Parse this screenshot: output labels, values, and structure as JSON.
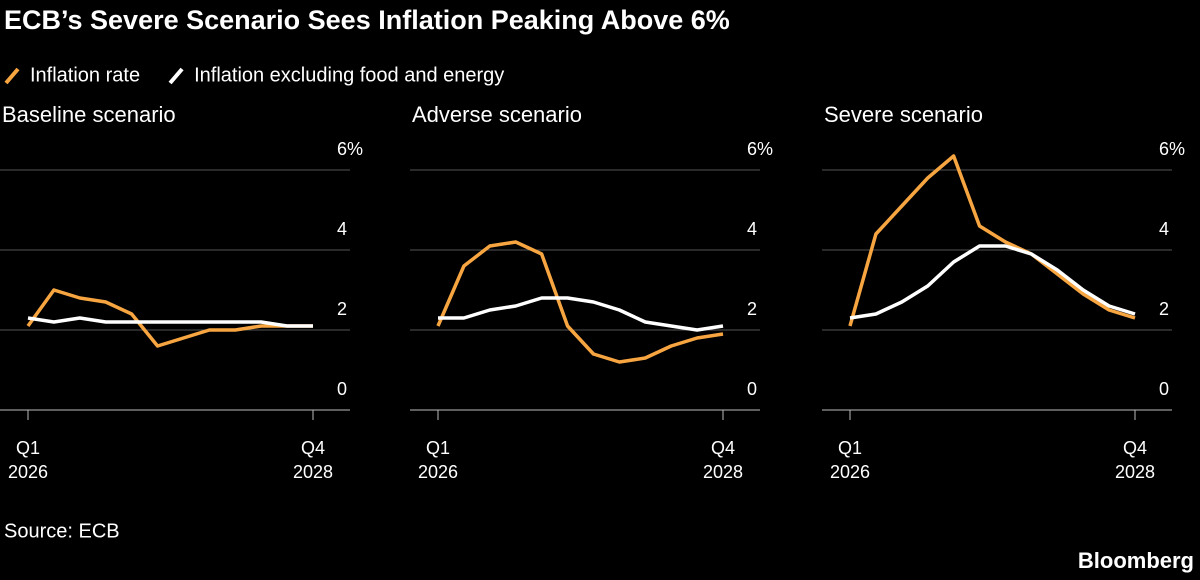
{
  "title": "ECB’s Severe Scenario Sees Inflation Peaking Above 6%",
  "source": "Source: ECB",
  "brand": "Bloomberg",
  "chart_data": [
    {
      "type": "line",
      "title": "Baseline scenario",
      "categories": [
        "Q1\n2026",
        null,
        null,
        null,
        null,
        null,
        null,
        null,
        null,
        null,
        null,
        "Q4\n2028"
      ],
      "ylim": [
        0,
        6.5
      ],
      "yticks": [
        0,
        2,
        4,
        {
          "value": 6,
          "label": "6%"
        }
      ],
      "grid": true,
      "series": [
        {
          "name": "Inflation rate",
          "color": "#f7a541",
          "values": [
            2.1,
            3.0,
            2.8,
            2.7,
            2.4,
            1.6,
            1.8,
            2.0,
            2.0,
            2.1,
            2.1,
            2.1
          ]
        },
        {
          "name": "Inflation excluding food and energy",
          "color": "#ffffff",
          "values": [
            2.3,
            2.2,
            2.3,
            2.2,
            2.2,
            2.2,
            2.2,
            2.2,
            2.2,
            2.2,
            2.1,
            2.1
          ]
        }
      ]
    },
    {
      "type": "line",
      "title": "Adverse scenario",
      "categories": [
        "Q1\n2026",
        null,
        null,
        null,
        null,
        null,
        null,
        null,
        null,
        null,
        null,
        "Q4\n2028"
      ],
      "ylim": [
        0,
        6.5
      ],
      "yticks": [
        0,
        2,
        4,
        {
          "value": 6,
          "label": "6%"
        }
      ],
      "grid": true,
      "series": [
        {
          "name": "Inflation rate",
          "color": "#f7a541",
          "values": [
            2.1,
            3.6,
            4.1,
            4.2,
            3.9,
            2.1,
            1.4,
            1.2,
            1.3,
            1.6,
            1.8,
            1.9
          ]
        },
        {
          "name": "Inflation excluding food and energy",
          "color": "#ffffff",
          "values": [
            2.3,
            2.3,
            2.5,
            2.6,
            2.8,
            2.8,
            2.7,
            2.5,
            2.2,
            2.1,
            2.0,
            2.1
          ]
        }
      ]
    },
    {
      "type": "line",
      "title": "Severe scenario",
      "categories": [
        "Q1\n2026",
        null,
        null,
        null,
        null,
        null,
        null,
        null,
        null,
        null,
        null,
        "Q4\n2028"
      ],
      "ylim": [
        0,
        6.5
      ],
      "yticks": [
        0,
        2,
        4,
        {
          "value": 6,
          "label": "6%"
        }
      ],
      "grid": true,
      "series": [
        {
          "name": "Inflation rate",
          "color": "#f7a541",
          "values": [
            2.1,
            4.4,
            5.1,
            5.8,
            6.35,
            4.6,
            4.2,
            3.9,
            3.4,
            2.9,
            2.5,
            2.3
          ]
        },
        {
          "name": "Inflation excluding food and energy",
          "color": "#ffffff",
          "values": [
            2.3,
            2.4,
            2.7,
            3.1,
            3.7,
            4.1,
            4.1,
            3.9,
            3.5,
            3.0,
            2.6,
            2.4
          ]
        }
      ]
    }
  ]
}
